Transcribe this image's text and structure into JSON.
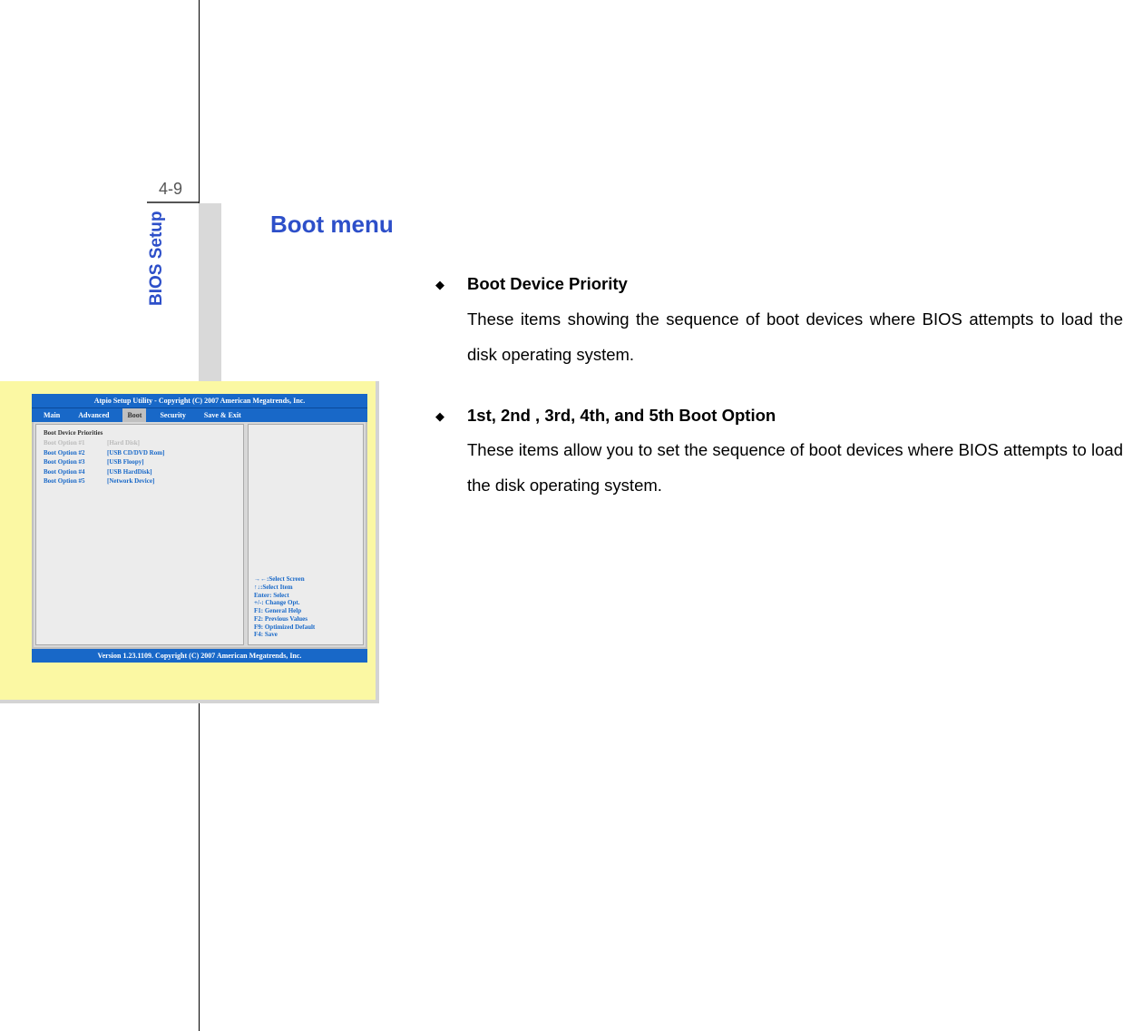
{
  "page": {
    "number": "4-9",
    "sidebar_label": "BIOS Setup"
  },
  "title": "Boot menu",
  "sections": [
    {
      "heading": "Boot Device Priority",
      "para": "These items showing the sequence of boot devices where BIOS attempts to load the disk operating system."
    },
    {
      "heading": "1st, 2nd , 3rd, 4th, and 5th Boot Option",
      "para": "These items allow you to set the sequence of boot devices where BIOS attempts to load the disk operating system."
    }
  ],
  "bios": {
    "title": "Atpio Setup Utility - Copyright (C) 2007 American Megatrends, Inc.",
    "footer": "Version 1.23.1109. Copyright (C) 2007 American Megatrends, Inc.",
    "tabs": [
      "Main",
      "Advanced",
      "Boot",
      "Security",
      "Save & Exit"
    ],
    "active_tab": "Boot",
    "section_header": "Boot Device Priorities",
    "options": [
      {
        "label": "Boot Option #1",
        "value": "[Hard Disk]",
        "selected": true
      },
      {
        "label": "Boot Option #2",
        "value": "[USB CD/DVD Rom]",
        "selected": false
      },
      {
        "label": "Boot Option #3",
        "value": "[USB Floopy]",
        "selected": false
      },
      {
        "label": "Boot Option #4",
        "value": "[USB HardDisk]",
        "selected": false
      },
      {
        "label": "Boot Option #5",
        "value": "[Network Device]",
        "selected": false
      }
    ],
    "help": [
      "→←:Select Screen",
      "↑↓:Select Item",
      "Enter: Select",
      "+/-: Change Opt.",
      "F1: General Help",
      "F2: Previous Values",
      "F9: Optimized Default",
      "F4: Save"
    ]
  },
  "colors": {
    "accent": "#2d4fc9",
    "bios_blue": "#1868c8",
    "bios_bg": "#fbf8a3",
    "gray_strip": "#d9d9d9"
  }
}
